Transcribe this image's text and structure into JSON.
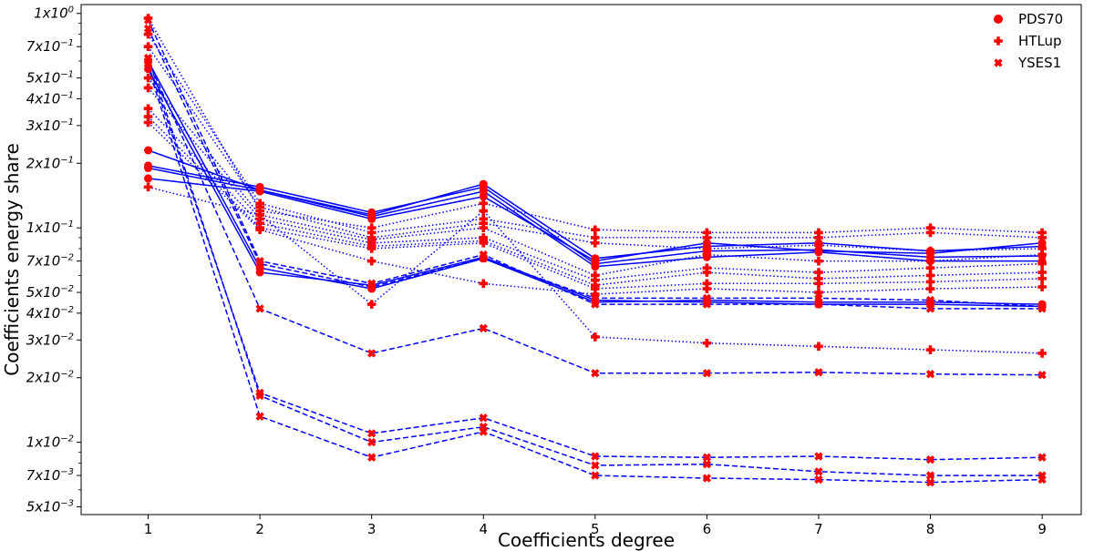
{
  "chart_data": {
    "type": "line",
    "title": "",
    "xlabel": "Coefficients degree",
    "ylabel": "Coefficients energy share",
    "x": [
      1,
      2,
      3,
      4,
      5,
      6,
      7,
      8,
      9
    ],
    "xlim": [
      0.4,
      9.35
    ],
    "ylim": [
      0.0046,
      1.1
    ],
    "yscale": "log",
    "yticks": [
      {
        "value": 1.0,
        "label": "1x10",
        "exp": "0"
      },
      {
        "value": 0.7,
        "label": "7x10",
        "exp": "−1"
      },
      {
        "value": 0.5,
        "label": "5x10",
        "exp": "−1"
      },
      {
        "value": 0.4,
        "label": "4x10",
        "exp": "−1"
      },
      {
        "value": 0.3,
        "label": "3x10",
        "exp": "−1"
      },
      {
        "value": 0.2,
        "label": "2x10",
        "exp": "−1"
      },
      {
        "value": 0.1,
        "label": "1x10",
        "exp": "−1"
      },
      {
        "value": 0.07,
        "label": "7x10",
        "exp": "−2"
      },
      {
        "value": 0.05,
        "label": "5x10",
        "exp": "−2"
      },
      {
        "value": 0.04,
        "label": "4x10",
        "exp": "−2"
      },
      {
        "value": 0.03,
        "label": "3x10",
        "exp": "−2"
      },
      {
        "value": 0.02,
        "label": "2x10",
        "exp": "−2"
      },
      {
        "value": 0.01,
        "label": "1x10",
        "exp": "−2"
      },
      {
        "value": 0.007,
        "label": "7x10",
        "exp": "−3"
      },
      {
        "value": 0.005,
        "label": "5x10",
        "exp": "−3"
      }
    ],
    "legend": [
      {
        "name": "PDS70",
        "marker": "circle"
      },
      {
        "name": "HTLup",
        "marker": "plus"
      },
      {
        "name": "YSES1",
        "marker": "x"
      }
    ],
    "legend_position": "top-right",
    "line_color": "#0000ff",
    "marker_color": "#ff0000",
    "series": [
      {
        "name": "PDS70",
        "style": "solid",
        "marker": "circle",
        "values": [
          0.23,
          0.15,
          0.115,
          0.16,
          0.072,
          0.082,
          0.085,
          0.078,
          0.082
        ]
      },
      {
        "name": "PDS70",
        "style": "solid",
        "marker": "circle",
        "values": [
          0.195,
          0.155,
          0.118,
          0.155,
          0.068,
          0.078,
          0.079,
          0.073,
          0.074
        ]
      },
      {
        "name": "PDS70",
        "style": "solid",
        "marker": "circle",
        "values": [
          0.19,
          0.15,
          0.113,
          0.148,
          0.066,
          0.073,
          0.077,
          0.07,
          0.07
        ]
      },
      {
        "name": "PDS70",
        "style": "solid",
        "marker": "circle",
        "values": [
          0.17,
          0.148,
          0.11,
          0.14,
          0.07,
          0.085,
          0.078,
          0.076,
          0.085
        ]
      },
      {
        "name": "PDS70",
        "style": "solid",
        "marker": "circle",
        "values": [
          0.55,
          0.062,
          0.054,
          0.073,
          0.046,
          0.045,
          0.044,
          0.044,
          0.043
        ]
      },
      {
        "name": "PDS70",
        "style": "solid",
        "marker": "circle",
        "values": [
          0.6,
          0.065,
          0.052,
          0.072,
          0.045,
          0.046,
          0.045,
          0.045,
          0.044
        ]
      },
      {
        "name": "HTLup",
        "style": "dotted",
        "marker": "plus",
        "values": [
          0.95,
          0.12,
          0.1,
          0.13,
          0.098,
          0.095,
          0.095,
          0.1,
          0.095
        ]
      },
      {
        "name": "HTLup",
        "style": "dotted",
        "marker": "plus",
        "values": [
          0.8,
          0.13,
          0.095,
          0.11,
          0.09,
          0.09,
          0.09,
          0.095,
          0.09
        ]
      },
      {
        "name": "HTLup",
        "style": "dotted",
        "marker": "plus",
        "values": [
          0.7,
          0.125,
          0.09,
          0.105,
          0.085,
          0.08,
          0.083,
          0.078,
          0.08
        ]
      },
      {
        "name": "HTLup",
        "style": "dotted",
        "marker": "plus",
        "values": [
          0.5,
          0.115,
          0.088,
          0.1,
          0.06,
          0.075,
          0.07,
          0.07,
          0.075
        ]
      },
      {
        "name": "HTLup",
        "style": "dotted",
        "marker": "plus",
        "values": [
          0.45,
          0.11,
          0.085,
          0.09,
          0.057,
          0.065,
          0.062,
          0.065,
          0.068
        ]
      },
      {
        "name": "HTLup",
        "style": "dotted",
        "marker": "plus",
        "values": [
          0.36,
          0.105,
          0.082,
          0.087,
          0.054,
          0.062,
          0.058,
          0.06,
          0.062
        ]
      },
      {
        "name": "HTLup",
        "style": "dotted",
        "marker": "plus",
        "values": [
          0.33,
          0.1,
          0.08,
          0.085,
          0.052,
          0.055,
          0.055,
          0.056,
          0.058
        ]
      },
      {
        "name": "HTLup",
        "style": "dotted",
        "marker": "plus",
        "values": [
          0.31,
          0.098,
          0.07,
          0.055,
          0.049,
          0.052,
          0.05,
          0.052,
          0.053
        ]
      },
      {
        "name": "HTLup",
        "style": "dotted",
        "marker": "plus",
        "values": [
          0.155,
          0.115,
          0.044,
          0.12,
          0.031,
          0.029,
          0.028,
          0.027,
          0.026
        ]
      },
      {
        "name": "YSES1",
        "style": "dashed",
        "marker": "x",
        "values": [
          0.93,
          0.07,
          0.055,
          0.075,
          0.044,
          0.044,
          0.044,
          0.042,
          0.042
        ]
      },
      {
        "name": "YSES1",
        "style": "dashed",
        "marker": "x",
        "values": [
          0.85,
          0.068,
          0.053,
          0.072,
          0.047,
          0.047,
          0.047,
          0.046,
          0.043
        ]
      },
      {
        "name": "YSES1",
        "style": "dashed",
        "marker": "x",
        "values": [
          0.6,
          0.042,
          0.026,
          0.034,
          0.021,
          0.021,
          0.0212,
          0.0208,
          0.0206
        ]
      },
      {
        "name": "YSES1",
        "style": "dashed",
        "marker": "x",
        "values": [
          0.58,
          0.017,
          0.011,
          0.013,
          0.0086,
          0.0085,
          0.0086,
          0.0083,
          0.0085
        ]
      },
      {
        "name": "YSES1",
        "style": "dashed",
        "marker": "x",
        "values": [
          0.62,
          0.0165,
          0.01,
          0.0118,
          0.0078,
          0.0079,
          0.0073,
          0.007,
          0.007
        ]
      },
      {
        "name": "YSES1",
        "style": "dashed",
        "marker": "x",
        "values": [
          0.56,
          0.0132,
          0.0085,
          0.0112,
          0.007,
          0.0068,
          0.0067,
          0.0065,
          0.0067
        ]
      }
    ]
  }
}
